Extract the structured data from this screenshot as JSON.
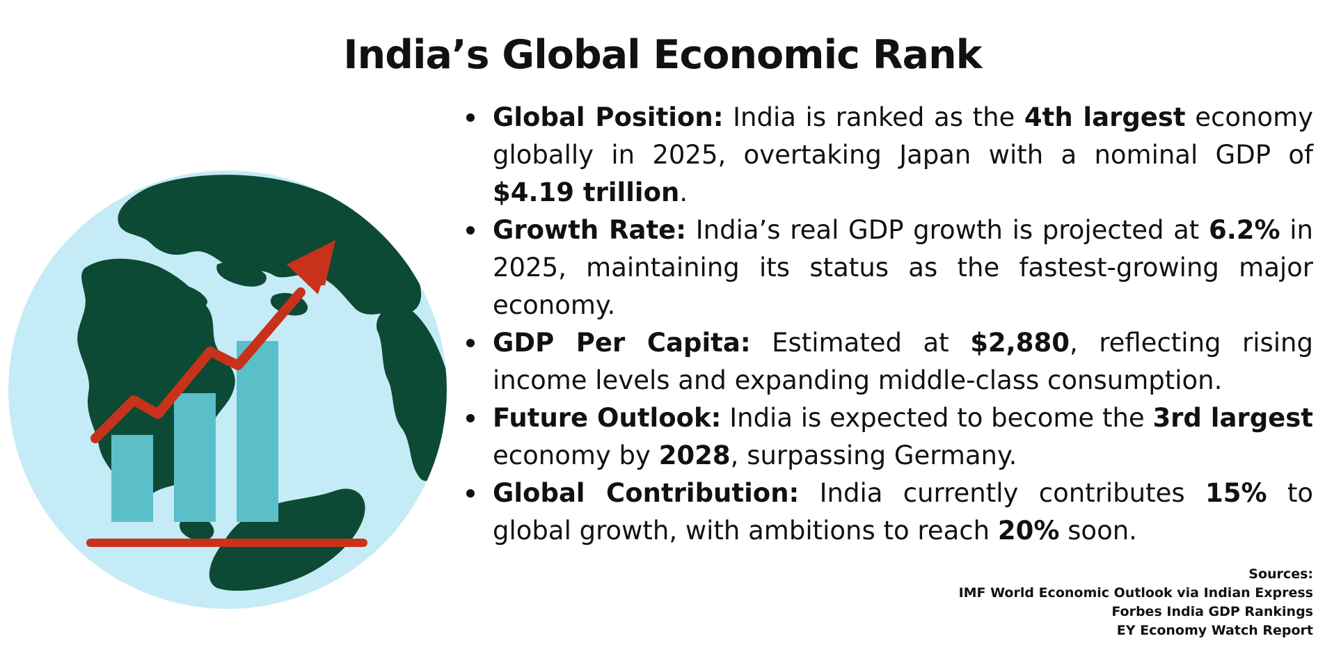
{
  "title": "India’s Global Economic Rank",
  "colors": {
    "ocean": "#c5ebf7",
    "land": "#0d4a35",
    "bars": "#5bbfca",
    "arrow": "#c8321a"
  },
  "illustration": {
    "icon": "globe-growth-chart-icon"
  },
  "bullets": [
    {
      "label": "Global Position:",
      "t1": " India is ranked as the ",
      "b1": "4th largest",
      "t2": " economy globally in 2025, overtaking Japan with a nominal GDP of ",
      "b2": "$4.19 trillion",
      "t3": "."
    },
    {
      "label": "Growth Rate:",
      "t1": " India’s real GDP growth is projected at ",
      "b1": "6.2%",
      "t2": " in 2025, maintaining its status as the fastest-growing major economy."
    },
    {
      "label": "GDP Per Capita:",
      "t1": " Estimated at ",
      "b1": "$2,880",
      "t2": ", reflecting rising income levels and expanding middle-class consumption."
    },
    {
      "label": "Future Outlook:",
      "t1": " India is expected to become the ",
      "b1": "3rd largest",
      "t2": " economy by ",
      "b2": "2028",
      "t3": ", surpassing Germany."
    },
    {
      "label": "Global Contribution:",
      "t1": " India currently contributes ",
      "b1": "15%",
      "t2": " to global growth, with ambitions to reach ",
      "b2": "20%",
      "t3": " soon."
    }
  ],
  "sources": {
    "heading": "Sources:",
    "items": [
      "IMF World Economic Outlook via Indian Express",
      "Forbes India GDP Rankings",
      "EY Economy Watch Report"
    ]
  }
}
